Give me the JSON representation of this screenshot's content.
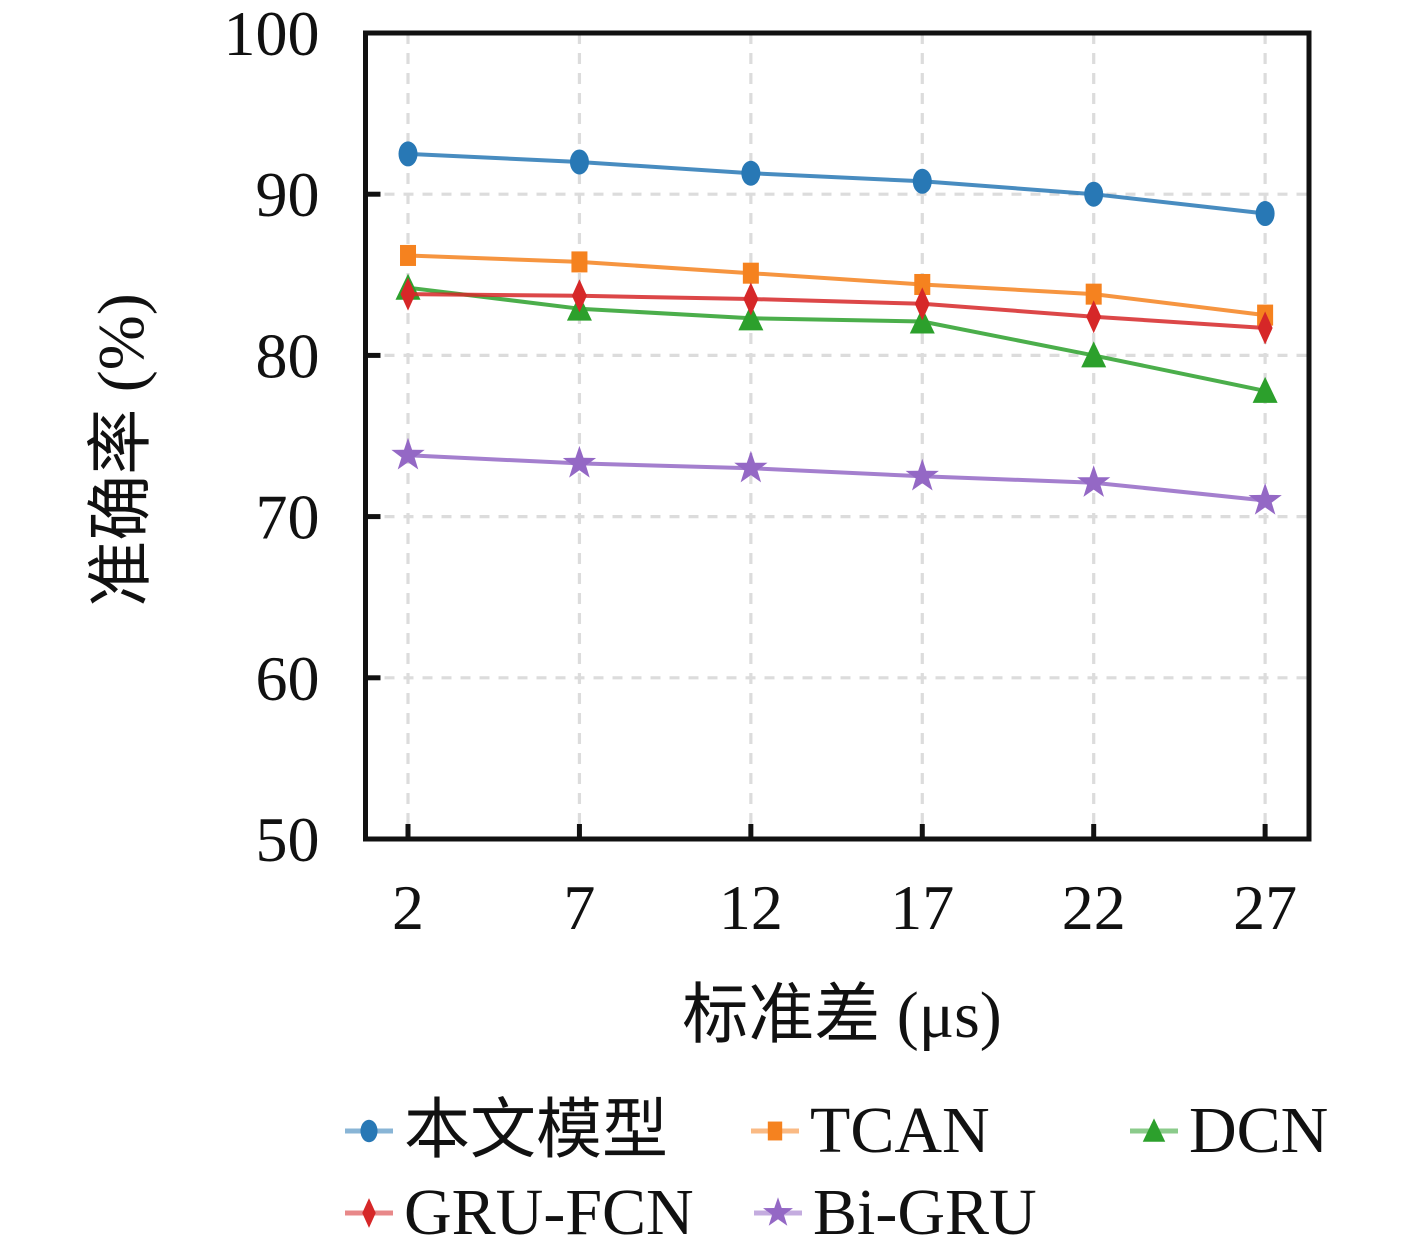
{
  "figure": {
    "background": "#ffffff",
    "axis_color": "#111111",
    "grid_color": "#dcdcdc"
  },
  "chart_data": {
    "type": "line",
    "title": "",
    "xlabel": "标准差 (μs)",
    "ylabel": "准确率 (%)",
    "x": [
      2,
      7,
      12,
      17,
      22,
      27
    ],
    "x_tick_labels": [
      "2",
      "7",
      "12",
      "17",
      "22",
      "27"
    ],
    "y_tick_values": [
      50,
      60,
      70,
      80,
      90,
      100
    ],
    "y_tick_labels": [
      "50",
      "60",
      "70",
      "80",
      "90",
      "100"
    ],
    "xlim": [
      0.76,
      28.28
    ],
    "ylim": [
      50,
      100
    ],
    "grid": "dashed",
    "legend_position": "bottom",
    "series": [
      {
        "key": "proposed-model",
        "name": "本文模型",
        "marker": "circle",
        "color": "#2878b5",
        "values": [
          92.5,
          92.0,
          91.3,
          90.8,
          90.0,
          88.8
        ]
      },
      {
        "key": "tcan",
        "name": "TCAN",
        "marker": "square",
        "color": "#f5821f",
        "values": [
          86.2,
          85.8,
          85.1,
          84.4,
          83.8,
          82.5
        ]
      },
      {
        "key": "dcn",
        "name": "DCN",
        "marker": "triangle",
        "color": "#2ca02c",
        "values": [
          84.2,
          82.9,
          82.3,
          82.1,
          80.0,
          77.8
        ]
      },
      {
        "key": "gru-fcn",
        "name": "GRU-FCN",
        "marker": "diamond",
        "color": "#d62728",
        "values": [
          83.8,
          83.7,
          83.5,
          83.2,
          82.4,
          81.7
        ]
      },
      {
        "key": "bi-gru",
        "name": "Bi-GRU",
        "marker": "star",
        "color": "#9468c5",
        "values": [
          73.8,
          73.3,
          73.0,
          72.5,
          72.1,
          71.0
        ]
      }
    ]
  }
}
